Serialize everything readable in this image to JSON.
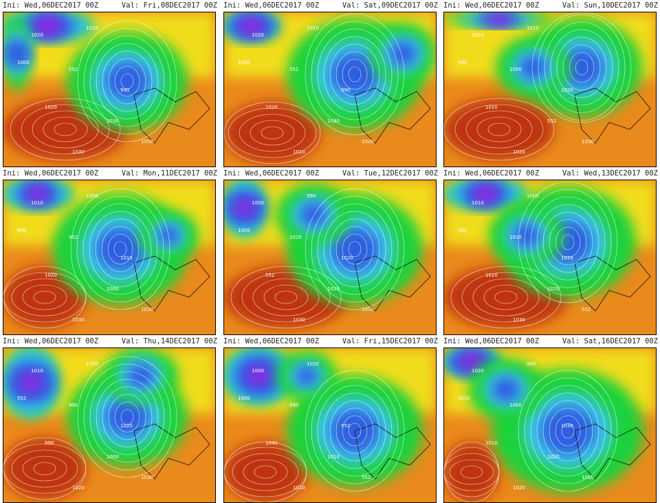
{
  "panels": [
    {
      "ini": "Ini: Wed,06DEC2017 00Z",
      "val": "Val: Fri,08DEC2017 00Z",
      "labels": [
        "1020",
        "1010",
        "1000",
        "552",
        "990",
        "1020",
        "1030",
        "1010",
        "1030"
      ]
    },
    {
      "ini": "Ini: Wed,06DEC2017 00Z",
      "val": "Val: Sat,09DEC2017 00Z",
      "labels": [
        "1020",
        "1010",
        "1000",
        "552",
        "990",
        "1020",
        "1030",
        "1020",
        "1010"
      ]
    },
    {
      "ini": "Ini: Wed,06DEC2017 00Z",
      "val": "Val: Sun,10DEC2017 00Z",
      "labels": [
        "1010",
        "1010",
        "990",
        "1000",
        "1020",
        "1010",
        "552",
        "1030",
        "1020"
      ]
    },
    {
      "ini": "Ini: Wed,06DEC2017 00Z",
      "val": "Val: Mon,11DEC2017 00Z",
      "labels": [
        "1010",
        "1000",
        "990",
        "552",
        "1010",
        "1020",
        "1000",
        "1020",
        "1030"
      ]
    },
    {
      "ini": "Ini: Wed,06DEC2017 00Z",
      "val": "Val: Tue,12DEC2017 00Z",
      "labels": [
        "1000",
        "990",
        "1000",
        "1010",
        "1020",
        "552",
        "1020",
        "1010",
        "1030"
      ]
    },
    {
      "ini": "Ini: Wed,06DEC2017 00Z",
      "val": "Val: Wed,13DEC2017 00Z",
      "labels": [
        "1010",
        "1000",
        "552",
        "1010",
        "1020",
        "1010",
        "1020",
        "552",
        "1030"
      ]
    },
    {
      "ini": "Ini: Wed,06DEC2017 00Z",
      "val": "Val: Thu,14DEC2017 00Z",
      "labels": [
        "1010",
        "1000",
        "552",
        "990",
        "1020",
        "990",
        "1000",
        "1030",
        "1020"
      ]
    },
    {
      "ini": "Ini: Wed,06DEC2017 00Z",
      "val": "Val: Fri,15DEC2017 00Z",
      "labels": [
        "1000",
        "1020",
        "1000",
        "990",
        "552",
        "1040",
        "1010",
        "552",
        "1010"
      ]
    },
    {
      "ini": "Ini: Wed,06DEC2017 00Z",
      "val": "Val: Sat,16DEC2017 00Z",
      "labels": [
        "1020",
        "990",
        "1010",
        "1000",
        "1030",
        "1010",
        "1020",
        "1010",
        "1020"
      ]
    }
  ],
  "colors": {
    "low": "#8a2be2",
    "blue": "#2f5fe0",
    "cyan": "#37c7e8",
    "green": "#1fd23a",
    "yellow": "#f2e51c",
    "orange": "#ea8a1c",
    "red": "#b8250f"
  }
}
